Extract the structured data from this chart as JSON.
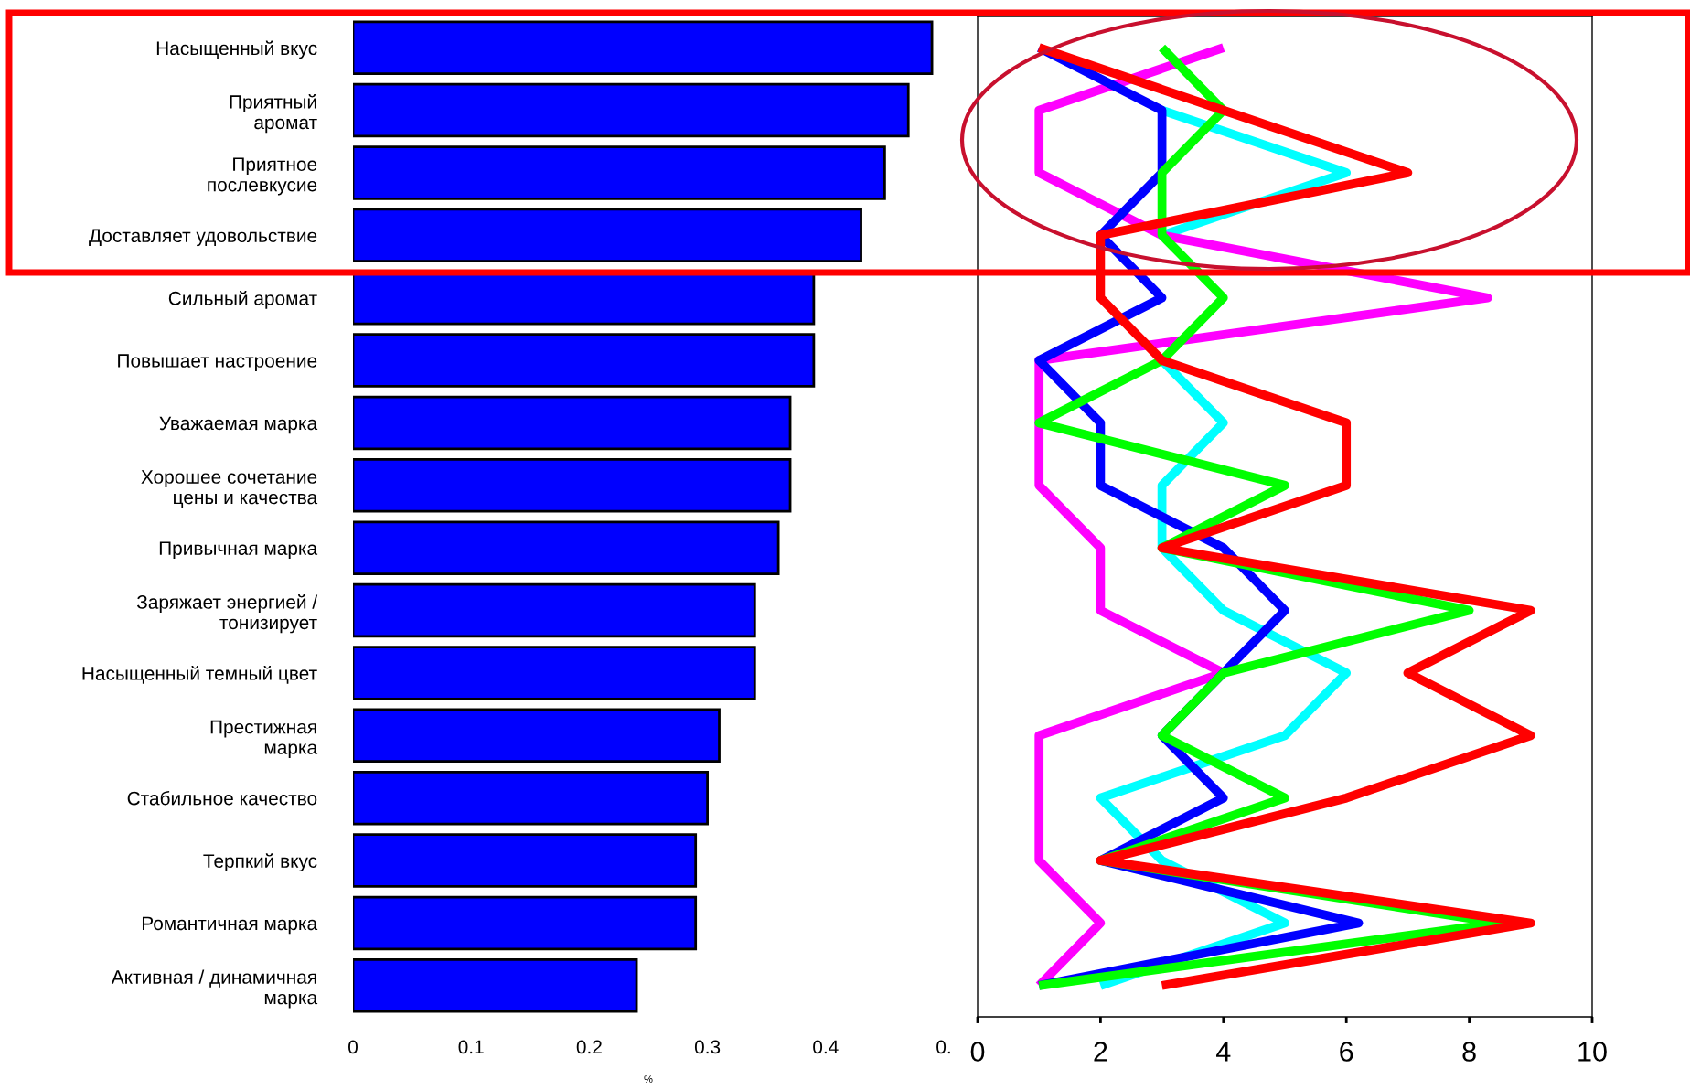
{
  "chart_data": [
    {
      "type": "bar",
      "orientation": "horizontal",
      "xlabel": "%",
      "categories": [
        "Насыщенный вкус",
        "Приятный\nаромат",
        "Приятное\nпослевкусие",
        "Доставляет удовольствие",
        "Сильный аромат",
        "Повышает настроение",
        "Уважаемая марка",
        "Хорошее сочетание\nцены и качества",
        "Привычная марка",
        "Заряжает энергией /\nтонизирует",
        "Насыщенный темный цвет",
        "Престижная\nмарка",
        "Стабильное качество",
        "Терпкий вкус",
        "Романтичная марка",
        "Активная / динамичная\nмарка"
      ],
      "values": [
        0.49,
        0.47,
        0.45,
        0.43,
        0.39,
        0.39,
        0.37,
        0.37,
        0.36,
        0.34,
        0.34,
        0.31,
        0.3,
        0.29,
        0.29,
        0.24
      ],
      "color": "#0000ff",
      "xlim": [
        0,
        0.5
      ],
      "xticks": [
        0,
        0.1,
        0.2,
        0.3,
        0.4,
        {
          "value": 0.5,
          "label": "0."
        }
      ]
    },
    {
      "type": "line",
      "orientation": "horizontal",
      "categories": [
        null,
        null,
        null,
        null,
        null,
        null,
        null,
        null,
        null,
        null,
        null,
        null,
        null,
        null,
        null,
        null
      ],
      "series": [
        {
          "color": "#00ffff",
          "values": [
            null,
            3,
            6,
            3,
            null,
            3,
            4,
            3,
            3,
            4,
            6,
            5,
            2,
            3,
            5,
            2
          ]
        },
        {
          "color": "#ff00ff",
          "values": [
            4,
            1,
            1,
            3,
            8.3,
            1,
            1,
            1,
            2,
            2,
            4,
            1,
            1,
            1,
            2,
            1
          ]
        },
        {
          "color": "#0000ff",
          "values": [
            1,
            3,
            3,
            2,
            3,
            1,
            2,
            2,
            4,
            5,
            4,
            3,
            4,
            2,
            6.2,
            1
          ]
        },
        {
          "color": "#00ff00",
          "values": [
            3,
            4,
            3,
            3,
            4,
            3,
            1,
            5,
            3,
            8,
            4,
            3,
            5,
            2,
            8.5,
            1
          ]
        },
        {
          "color": "#ff0000",
          "values": [
            1,
            4,
            7,
            2,
            2,
            3,
            6,
            6,
            3,
            9,
            7,
            9,
            6,
            2,
            9,
            3
          ]
        }
      ],
      "xlim": [
        0,
        10
      ],
      "xticks": [
        0,
        2,
        4,
        6,
        8,
        10
      ]
    }
  ]
}
